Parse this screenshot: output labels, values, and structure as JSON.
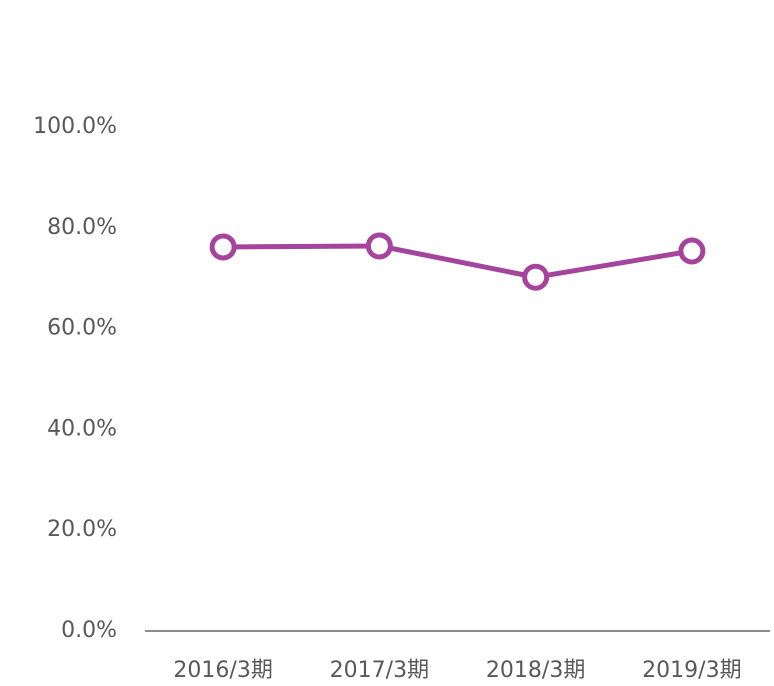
{
  "chart_data": {
    "type": "line",
    "categories": [
      "2016/3期",
      "2017/3期",
      "2018/3期",
      "2019/3期"
    ],
    "values": [
      76.2,
      76.4,
      70.2,
      75.4
    ],
    "color": "#a5449c",
    "ylim": [
      0,
      100
    ],
    "yticks": [
      {
        "value": 0,
        "label": "0.0%"
      },
      {
        "value": 20,
        "label": "20.0%"
      },
      {
        "value": 40,
        "label": "40.0%"
      },
      {
        "value": 60,
        "label": "60.0%"
      },
      {
        "value": 80,
        "label": "80.0%"
      },
      {
        "value": 100,
        "label": "100.0%"
      }
    ],
    "grid": false
  }
}
